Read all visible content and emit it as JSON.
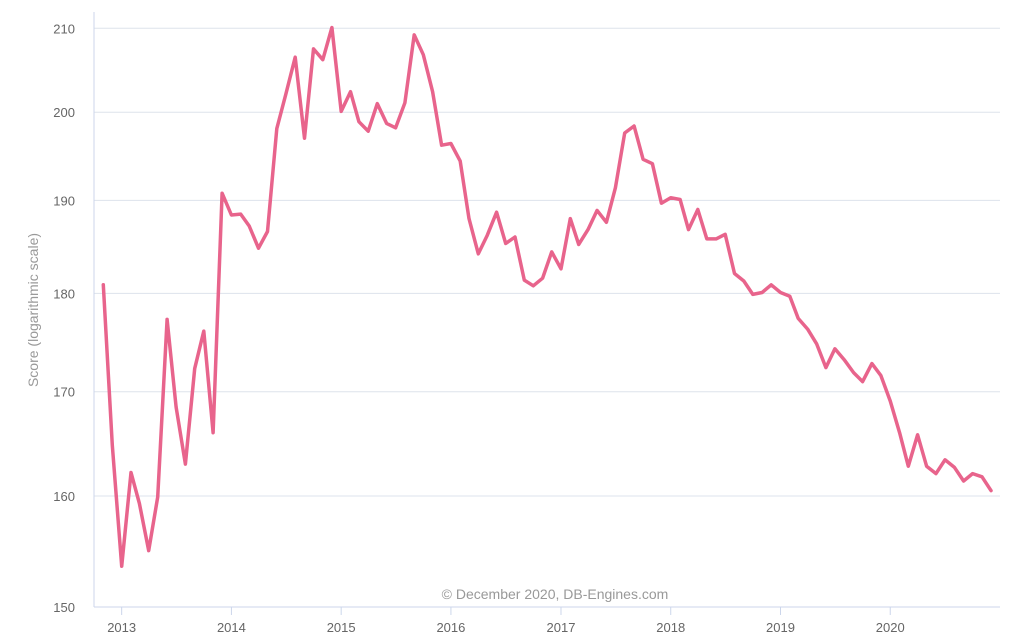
{
  "chart_data": {
    "type": "line",
    "ylabel": "Score (logarithmic scale)",
    "yscale": "log",
    "ylim": [
      150,
      212
    ],
    "yticks": [
      150,
      160,
      170,
      180,
      190,
      200,
      210
    ],
    "xlim": [
      "2012-10-01",
      "2020-12-31"
    ],
    "xticks": [
      "2013",
      "2014",
      "2015",
      "2016",
      "2017",
      "2018",
      "2019",
      "2020"
    ],
    "grid": true,
    "legend": "none",
    "credit": "© December 2020, DB-Engines.com",
    "line_color": "#e8648c",
    "series": [
      {
        "x": [
          "2012-11",
          "2012-12",
          "2013-01",
          "2013-02",
          "2013-03",
          "2013-04",
          "2013-05",
          "2013-06",
          "2013-07",
          "2013-08",
          "2013-09",
          "2013-10",
          "2013-11",
          "2013-12",
          "2014-01",
          "2014-02",
          "2014-03",
          "2014-04",
          "2014-05",
          "2014-06",
          "2014-07",
          "2014-08",
          "2014-09",
          "2014-10",
          "2014-11",
          "2014-12",
          "2015-01",
          "2015-02",
          "2015-03",
          "2015-04",
          "2015-05",
          "2015-06",
          "2015-07",
          "2015-08",
          "2015-09",
          "2015-10",
          "2015-11",
          "2015-12",
          "2016-01",
          "2016-02",
          "2016-03",
          "2016-04",
          "2016-05",
          "2016-06",
          "2016-07",
          "2016-08",
          "2016-09",
          "2016-10",
          "2016-11",
          "2016-12",
          "2017-01",
          "2017-02",
          "2017-03",
          "2017-04",
          "2017-05",
          "2017-06",
          "2017-07",
          "2017-08",
          "2017-09",
          "2017-10",
          "2017-11",
          "2017-12",
          "2018-01",
          "2018-02",
          "2018-03",
          "2018-04",
          "2018-05",
          "2018-06",
          "2018-07",
          "2018-08",
          "2018-09",
          "2018-10",
          "2018-11",
          "2018-12",
          "2019-01",
          "2019-02",
          "2019-03",
          "2019-04",
          "2019-05",
          "2019-06",
          "2019-07",
          "2019-08",
          "2019-09",
          "2019-10",
          "2019-11",
          "2019-12",
          "2020-01",
          "2020-02",
          "2020-03",
          "2020-04",
          "2020-05",
          "2020-06",
          "2020-07",
          "2020-08",
          "2020-09",
          "2020-10",
          "2020-11",
          "2020-12"
        ],
        "values": [
          180.9,
          164.8,
          153.6,
          162.2,
          159.3,
          155.0,
          159.9,
          177.3,
          168.5,
          163.0,
          172.3,
          176.1,
          166.0,
          190.8,
          188.4,
          188.5,
          187.2,
          184.8,
          186.6,
          198.1,
          202.1,
          206.5,
          197.0,
          207.5,
          206.2,
          210.1,
          200.1,
          202.4,
          198.9,
          197.8,
          201.0,
          198.7,
          198.2,
          201.1,
          209.2,
          206.8,
          202.4,
          196.2,
          196.4,
          194.4,
          188.0,
          184.2,
          186.2,
          188.7,
          185.3,
          186.0,
          181.4,
          180.8,
          181.6,
          184.4,
          182.6,
          188.0,
          185.2,
          186.8,
          188.9,
          187.6,
          191.4,
          197.6,
          198.4,
          194.6,
          194.1,
          189.7,
          190.3,
          190.1,
          186.8,
          189.0,
          185.8,
          185.8,
          186.3,
          182.1,
          181.3,
          179.9,
          180.1,
          180.9,
          180.1,
          179.7,
          177.4,
          176.3,
          174.8,
          172.4,
          174.3,
          173.2,
          171.9,
          171.0,
          172.8,
          171.6,
          169.1,
          166.0,
          162.8,
          165.8,
          162.8,
          162.1,
          163.4,
          162.7,
          161.4,
          162.1,
          161.8,
          160.5
        ]
      }
    ]
  }
}
